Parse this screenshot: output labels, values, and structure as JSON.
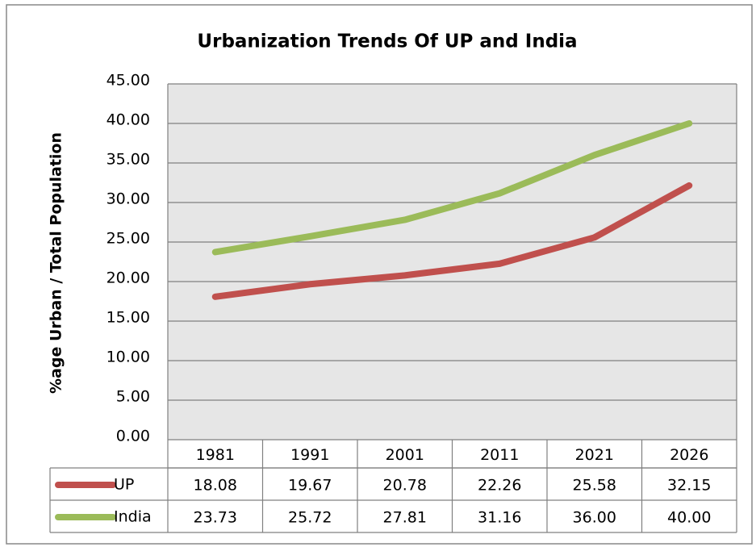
{
  "chart_data": {
    "type": "line",
    "title": "Urbanization Trends Of UP and India",
    "y_label": "%age Urban / Total Population",
    "categories": [
      "1981",
      "1991",
      "2001",
      "2011",
      "2021",
      "2026"
    ],
    "series": [
      {
        "name": "UP",
        "color": "#c0504d",
        "values": [
          18.08,
          19.67,
          20.78,
          22.26,
          25.58,
          32.15
        ],
        "value_labels": [
          "18.08",
          "19.67",
          "20.78",
          "22.26",
          "25.58",
          "32.15"
        ]
      },
      {
        "name": "India",
        "color": "#9bbb59",
        "values": [
          23.73,
          25.72,
          27.81,
          31.16,
          36,
          40
        ],
        "value_labels": [
          "23.73",
          "25.72",
          "27.81",
          "31.16",
          "36.00",
          "40.00"
        ]
      }
    ],
    "ylim": [
      0,
      45
    ],
    "yticks": [
      {
        "value": 0,
        "label": "0.00"
      },
      {
        "value": 5,
        "label": "5.00"
      },
      {
        "value": 10,
        "label": "10.00"
      },
      {
        "value": 15,
        "label": "15.00"
      },
      {
        "value": 20,
        "label": "20.00"
      },
      {
        "value": 25,
        "label": "25.00"
      },
      {
        "value": 30,
        "label": "30.00"
      },
      {
        "value": 35,
        "label": "35.00"
      },
      {
        "value": 40,
        "label": "40.00"
      },
      {
        "value": 45,
        "label": "45.00"
      }
    ],
    "grid": true,
    "data_table": true
  }
}
